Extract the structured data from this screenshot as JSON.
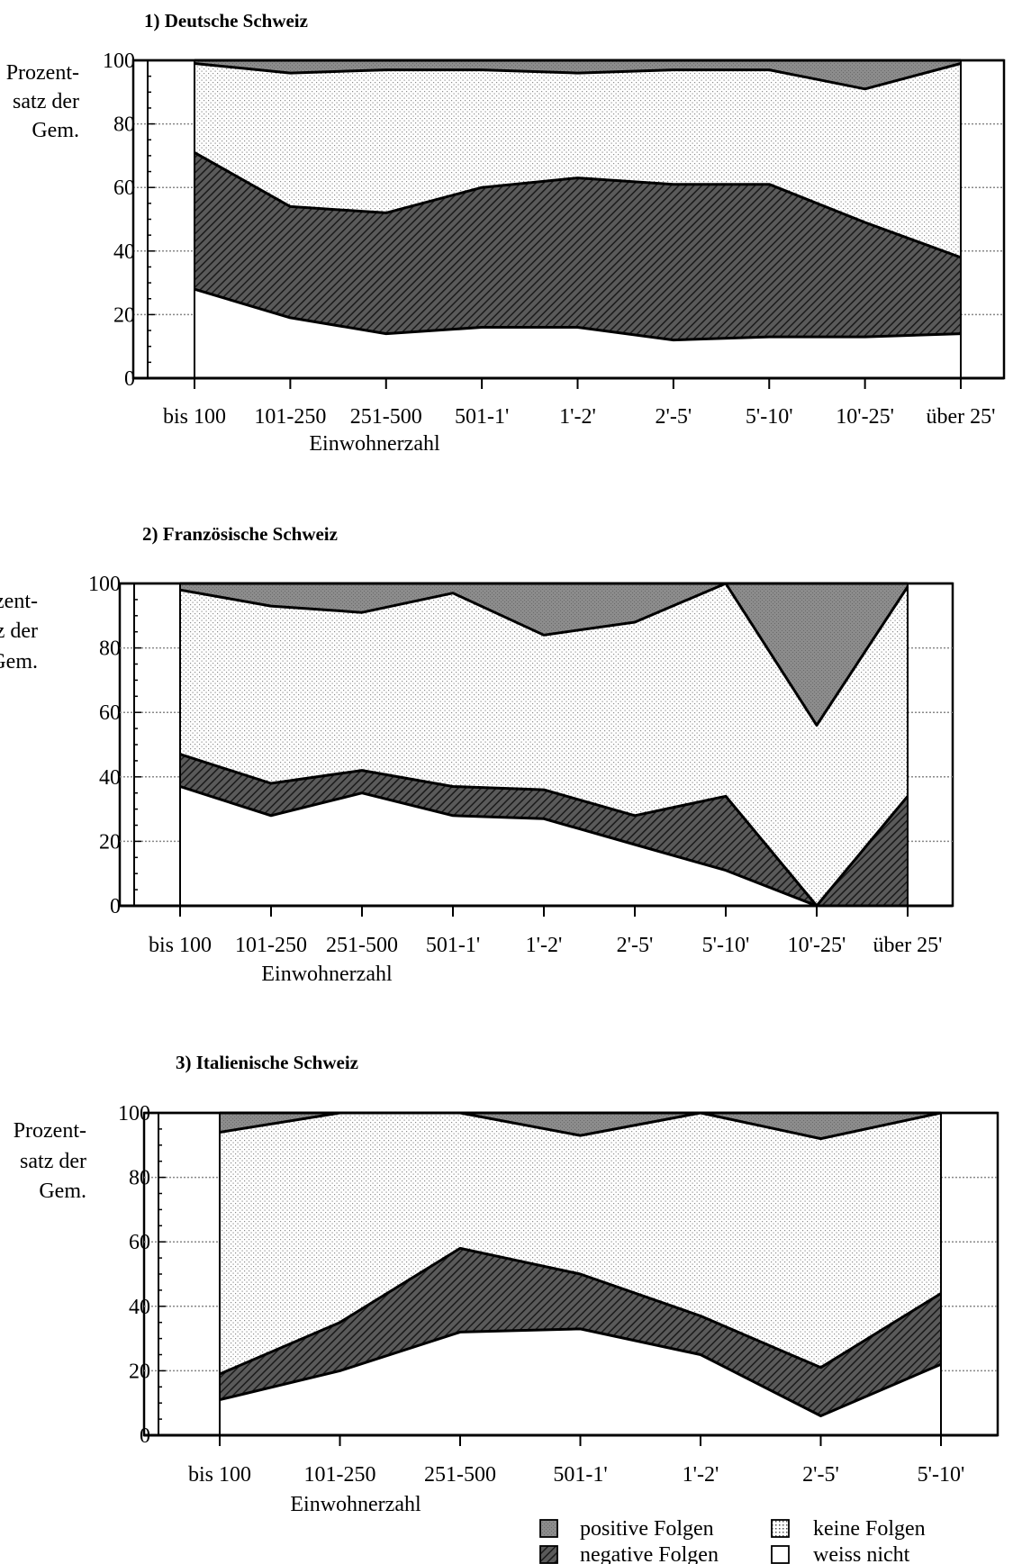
{
  "chart_data": [
    {
      "type": "area",
      "title": "1) Deutsche Schweiz",
      "ylabel": [
        "Prozent-",
        "satz der",
        "Gem."
      ],
      "xlabel": "Einwohnerzahl",
      "categories": [
        "bis 100",
        "101-250",
        "251-500",
        "501-1'",
        "1'-2'",
        "2'-5'",
        "5'-10'",
        "10'-25'",
        "über 25'"
      ],
      "ylim": [
        0,
        100
      ],
      "yticks": [
        "0",
        "20",
        "40",
        "60",
        "80",
        "100"
      ],
      "stacked": true,
      "series": [
        {
          "name": "weiss nicht",
          "values": [
            28,
            19,
            14,
            16,
            16,
            12,
            13,
            13,
            14
          ]
        },
        {
          "name": "negative Folgen",
          "values": [
            43,
            35,
            38,
            44,
            47,
            49,
            48,
            36,
            24
          ]
        },
        {
          "name": "keine Folgen",
          "values": [
            28,
            42,
            45,
            37,
            33,
            36,
            36,
            42,
            61
          ]
        },
        {
          "name": "positive Folgen",
          "values": [
            1,
            4,
            3,
            3,
            4,
            3,
            3,
            9,
            1
          ]
        }
      ]
    },
    {
      "type": "area",
      "title": "2) Französische Schweiz",
      "ylabel": [
        "Prozent-",
        "satz der",
        "Gem."
      ],
      "xlabel": "Einwohnerzahl",
      "categories": [
        "bis 100",
        "101-250",
        "251-500",
        "501-1'",
        "1'-2'",
        "2'-5'",
        "5'-10'",
        "10'-25'",
        "über 25'"
      ],
      "ylim": [
        0,
        100
      ],
      "yticks": [
        "0",
        "20",
        "40",
        "60",
        "80",
        "100"
      ],
      "stacked": true,
      "series": [
        {
          "name": "weiss nicht",
          "values": [
            37,
            28,
            35,
            28,
            27,
            19,
            11,
            0,
            0
          ]
        },
        {
          "name": "negative Folgen",
          "values": [
            10,
            10,
            7,
            9,
            9,
            9,
            23,
            0,
            34
          ]
        },
        {
          "name": "keine Folgen",
          "values": [
            51,
            55,
            49,
            60,
            48,
            60,
            66,
            56,
            65
          ]
        },
        {
          "name": "positive Folgen",
          "values": [
            2,
            7,
            9,
            3,
            16,
            12,
            0,
            44,
            1
          ]
        }
      ]
    },
    {
      "type": "area",
      "title": "3) Italienische Schweiz",
      "ylabel": [
        "Prozent-",
        "satz der",
        "Gem."
      ],
      "xlabel": "Einwohnerzahl",
      "categories": [
        "bis 100",
        "101-250",
        "251-500",
        "501-1'",
        "1'-2'",
        "2'-5'",
        "5'-10'"
      ],
      "ylim": [
        0,
        100
      ],
      "yticks": [
        "0",
        "20",
        "40",
        "60",
        "80",
        "100"
      ],
      "stacked": true,
      "series": [
        {
          "name": "weiss nicht",
          "values": [
            11,
            20,
            32,
            33,
            25,
            6,
            22
          ]
        },
        {
          "name": "negative Folgen",
          "values": [
            8,
            15,
            26,
            17,
            12,
            15,
            22
          ]
        },
        {
          "name": "keine Folgen",
          "values": [
            75,
            65,
            42,
            43,
            63,
            71,
            56
          ]
        },
        {
          "name": "positive Folgen",
          "values": [
            6,
            0,
            0,
            7,
            0,
            8,
            0
          ]
        }
      ]
    }
  ],
  "legend": {
    "items": [
      {
        "label": "positive Folgen",
        "swatch": "positive"
      },
      {
        "label": "keine Folgen",
        "swatch": "keine"
      },
      {
        "label": "negative Folgen",
        "swatch": "negative"
      },
      {
        "label": "weiss nicht",
        "swatch": "weiss"
      }
    ]
  },
  "colors": {
    "positive": "#8c8c8c",
    "negative": "#3d3d3d",
    "dots": "#a0a0a0",
    "outline": "#000000",
    "background": "#ffffff"
  }
}
